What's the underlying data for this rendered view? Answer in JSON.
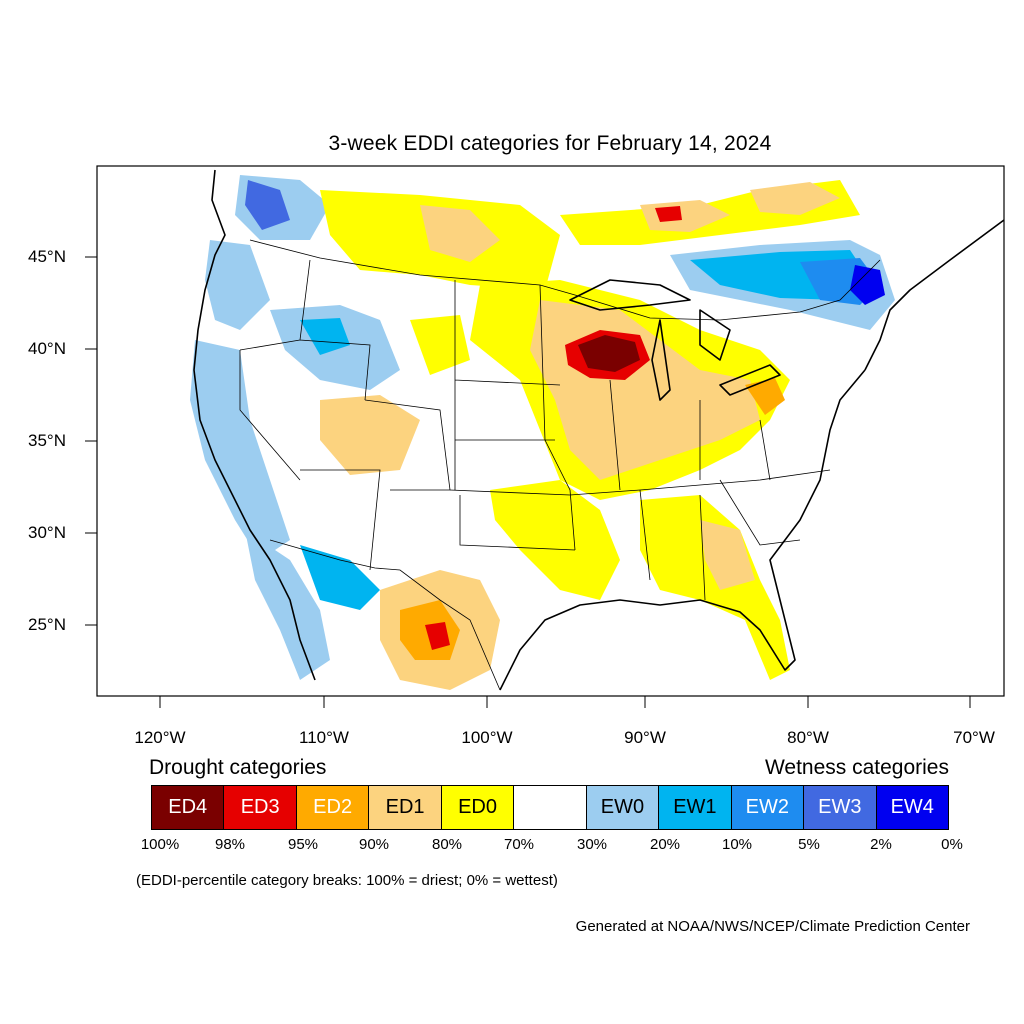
{
  "title": "3-week EDDI categories for February 14, 2024",
  "lat_labels": [
    "45°N",
    "40°N",
    "35°N",
    "30°N",
    "25°N"
  ],
  "lon_labels": [
    "120°W",
    "110°W",
    "100°W",
    "90°W",
    "80°W",
    "70°W"
  ],
  "legend": {
    "drought_heading": "Drought categories",
    "wetness_heading": "Wetness categories",
    "categories": [
      {
        "label": "ED4",
        "color": "#7a0000",
        "text_color": "#ffffff"
      },
      {
        "label": "ED3",
        "color": "#e60000",
        "text_color": "#ffffff"
      },
      {
        "label": "ED2",
        "color": "#ffaa00",
        "text_color": "#ffffff"
      },
      {
        "label": "ED1",
        "color": "#fcd37f",
        "text_color": "#000000"
      },
      {
        "label": "ED0",
        "color": "#ffff00",
        "text_color": "#000000"
      },
      {
        "label": "",
        "color": "#ffffff",
        "text_color": "#000000"
      },
      {
        "label": "EW0",
        "color": "#9ccdf0",
        "text_color": "#000000"
      },
      {
        "label": "EW1",
        "color": "#00b4f0",
        "text_color": "#000000"
      },
      {
        "label": "EW2",
        "color": "#1e8cf0",
        "text_color": "#ffffff"
      },
      {
        "label": "EW3",
        "color": "#4169e1",
        "text_color": "#ffffff"
      },
      {
        "label": "EW4",
        "color": "#0000f0",
        "text_color": "#ffffff"
      }
    ],
    "percentiles": [
      "100%",
      "98%",
      "95%",
      "90%",
      "80%",
      "70%",
      "30%",
      "20%",
      "10%",
      "5%",
      "2%",
      "0%"
    ]
  },
  "breaks_note": "(EDDI-percentile category breaks: 100% = driest; 0% = wettest)",
  "credit": "Generated at NOAA/NWS/NCEP/Climate Prediction Center"
}
